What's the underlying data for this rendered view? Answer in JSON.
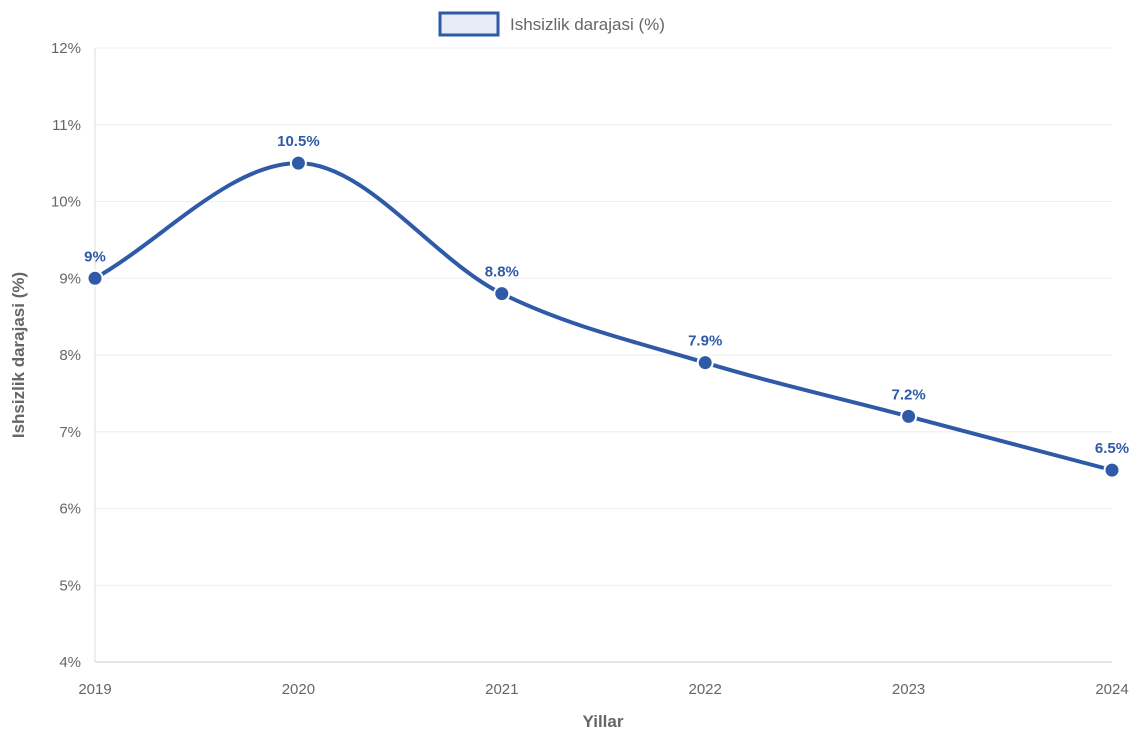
{
  "chart_data": {
    "type": "line",
    "categories": [
      "2019",
      "2020",
      "2021",
      "2022",
      "2023",
      "2024"
    ],
    "series": [
      {
        "name": "Ishsizlik darajasi (%)",
        "values": [
          9,
          10.5,
          8.8,
          7.9,
          7.2,
          6.5
        ],
        "data_labels": [
          "9%",
          "10.5%",
          "8.8%",
          "7.9%",
          "7.2%",
          "6.5%"
        ],
        "color": "#2f5aa8",
        "fill": "#e6ecf8"
      }
    ],
    "xlabel": "Yillar",
    "ylabel": "Ishsizlik darajasi (%)",
    "ylim": [
      4,
      12
    ],
    "yticks": [
      "4%",
      "5%",
      "6%",
      "7%",
      "8%",
      "9%",
      "10%",
      "11%",
      "12%"
    ],
    "grid": true,
    "legend_position": "top-center",
    "smooth": true
  }
}
